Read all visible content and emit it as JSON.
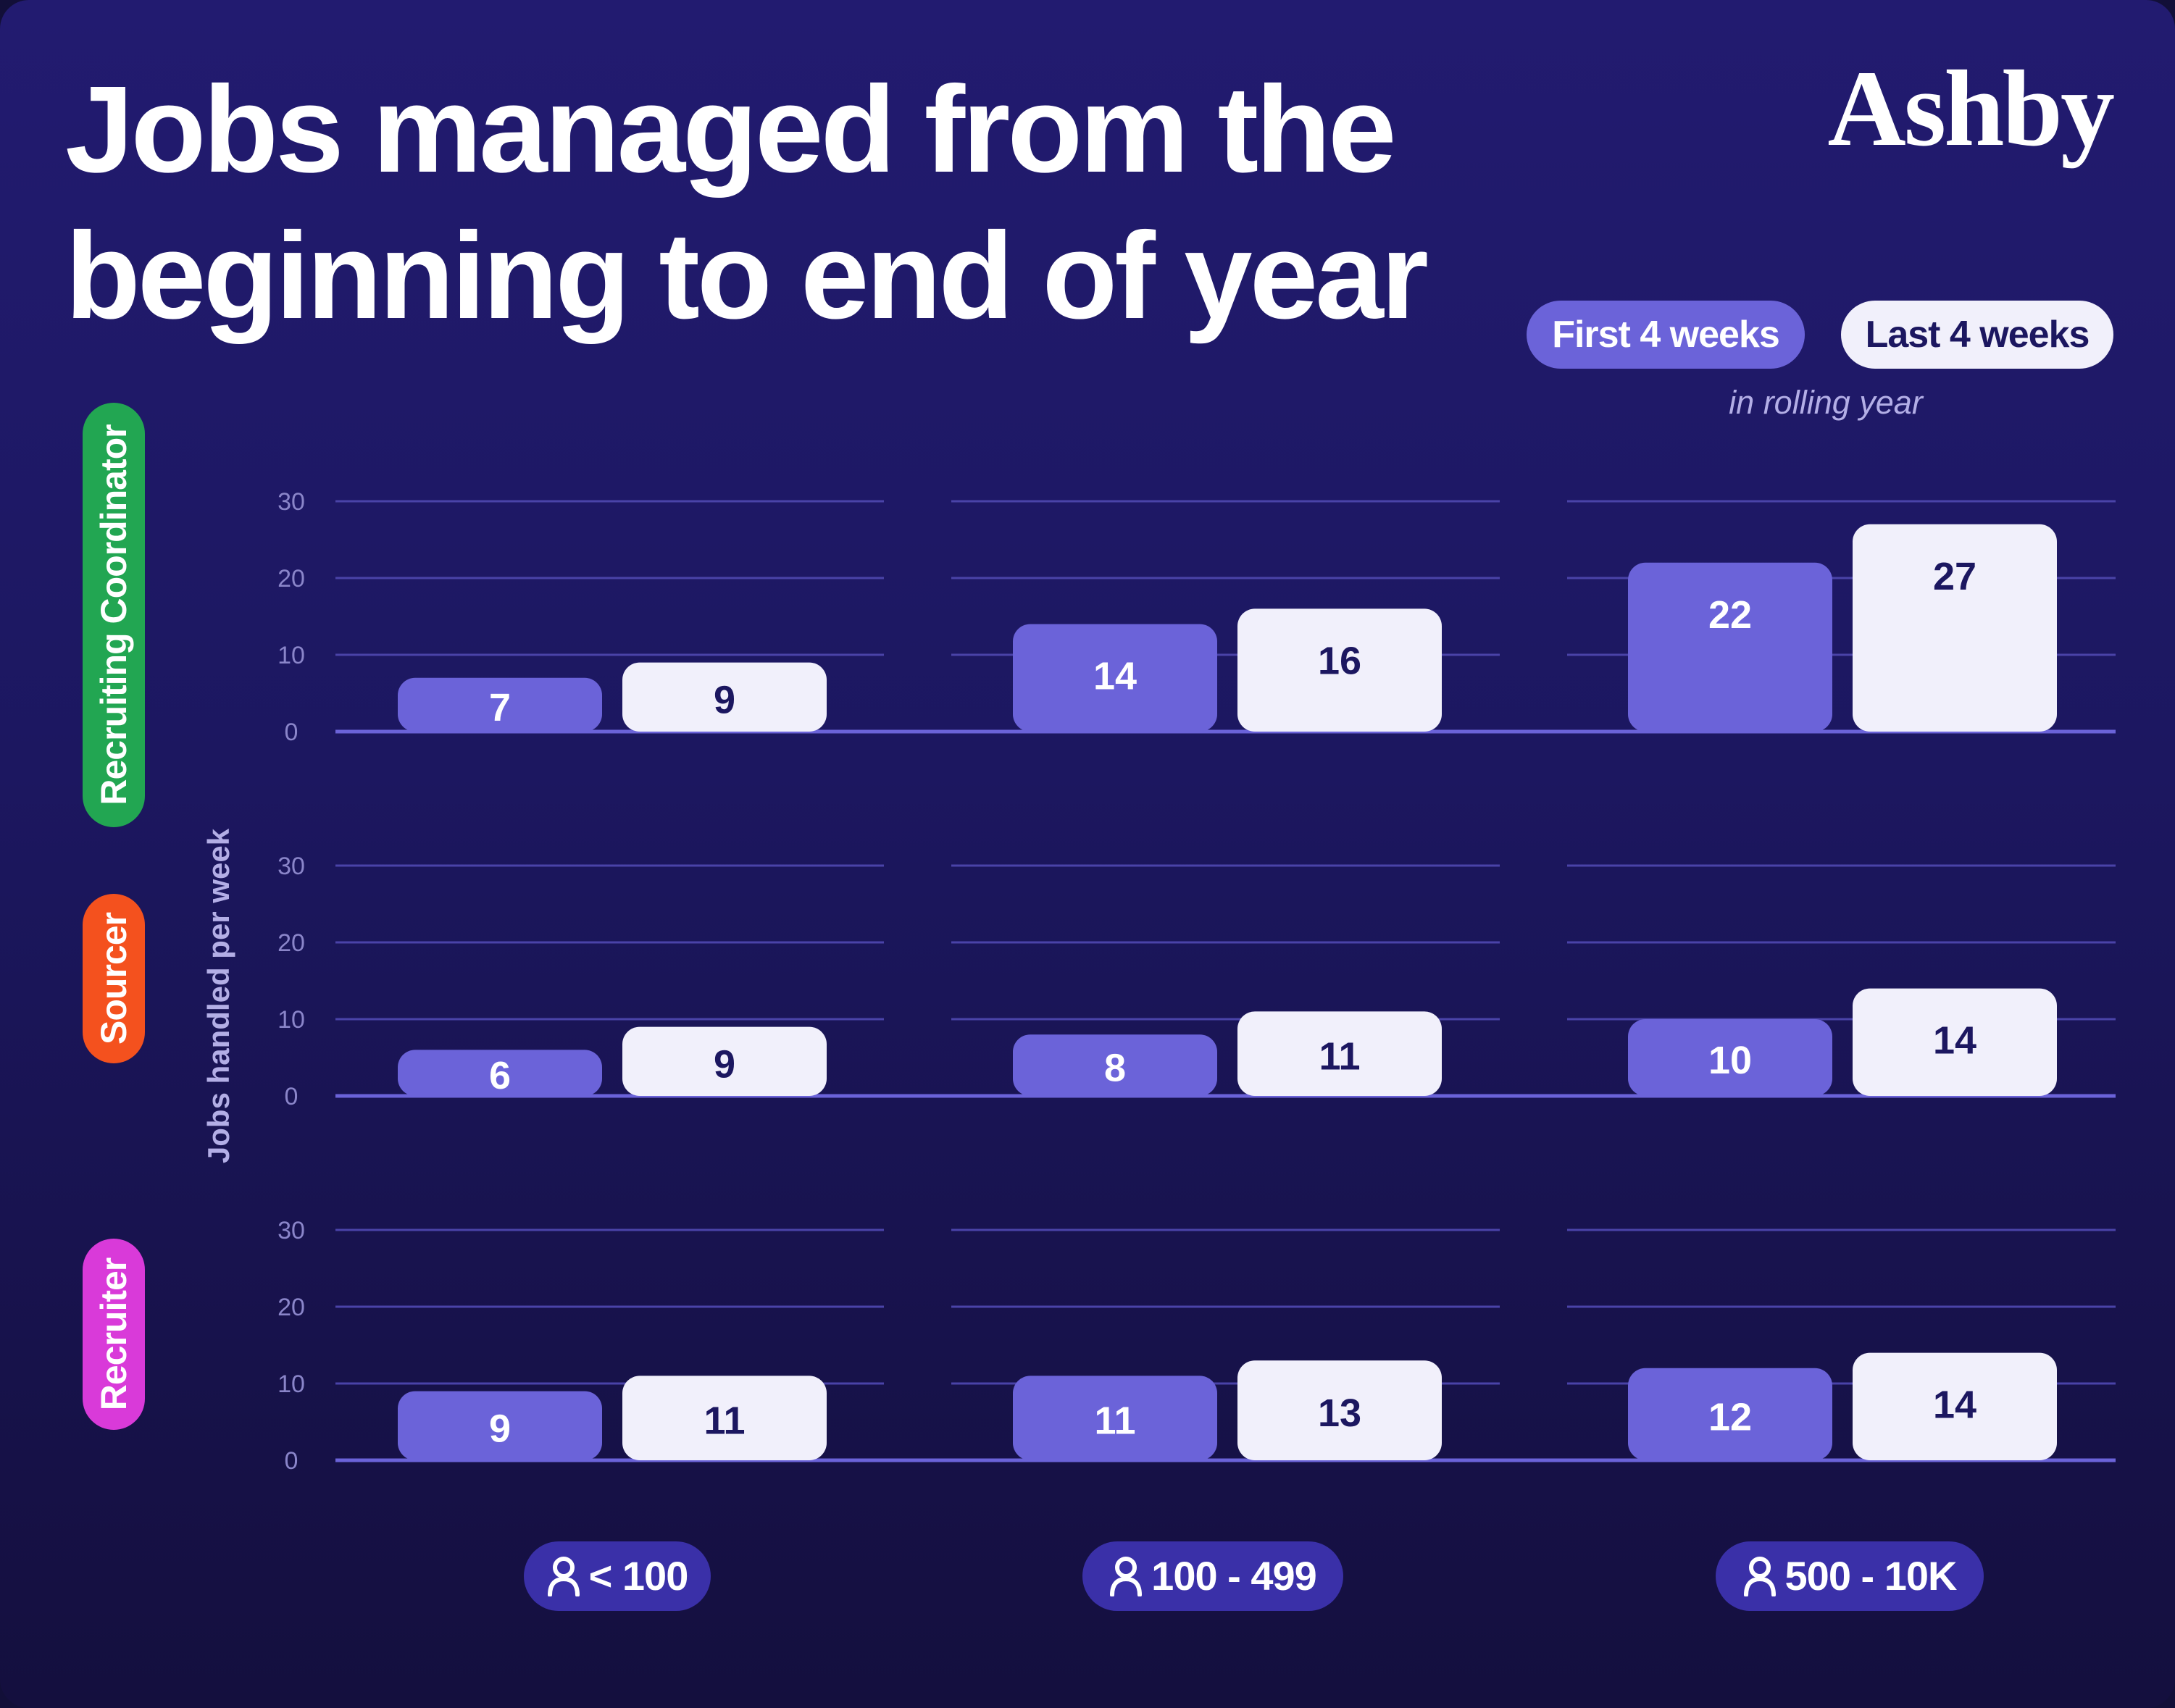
{
  "title_line1": "Jobs managed from the",
  "title_line2": "beginning to end of year",
  "brand": "Ashby",
  "legend": {
    "first": "First 4 weeks",
    "last": "Last 4 weeks",
    "note": "in rolling year"
  },
  "colors": {
    "background": "#1e1968",
    "first": "#6b63d9",
    "last": "#f1f0fb",
    "role_recruiting_coordinator": "#22a652",
    "role_sourcer": "#f4511e",
    "role_recruiter": "#d93ad9"
  },
  "roles": [
    "Recruiting Coordinator",
    "Sourcer",
    "Recruiter"
  ],
  "buckets": [
    "< 100",
    "100 - 499",
    "500 - 10K"
  ],
  "chart_data": {
    "type": "bar",
    "ylabel": "Jobs handled per week",
    "ylim": [
      0,
      30
    ],
    "yticks": [
      30,
      20,
      10,
      0
    ],
    "categories": [
      "< 100",
      "100 - 499",
      "500 - 10K"
    ],
    "legend_position": "top-right",
    "grid": true,
    "panels": [
      {
        "role": "Recruiting Coordinator",
        "series": [
          {
            "name": "First 4 weeks",
            "values": [
              7,
              14,
              22
            ]
          },
          {
            "name": "Last 4 weeks",
            "values": [
              9,
              16,
              27
            ]
          }
        ]
      },
      {
        "role": "Sourcer",
        "series": [
          {
            "name": "First 4 weeks",
            "values": [
              6,
              8,
              10
            ]
          },
          {
            "name": "Last 4 weeks",
            "values": [
              9,
              11,
              14
            ]
          }
        ]
      },
      {
        "role": "Recruiter",
        "series": [
          {
            "name": "First 4 weeks",
            "values": [
              9,
              11,
              12
            ]
          },
          {
            "name": "Last 4 weeks",
            "values": [
              11,
              13,
              14
            ]
          }
        ]
      }
    ]
  }
}
